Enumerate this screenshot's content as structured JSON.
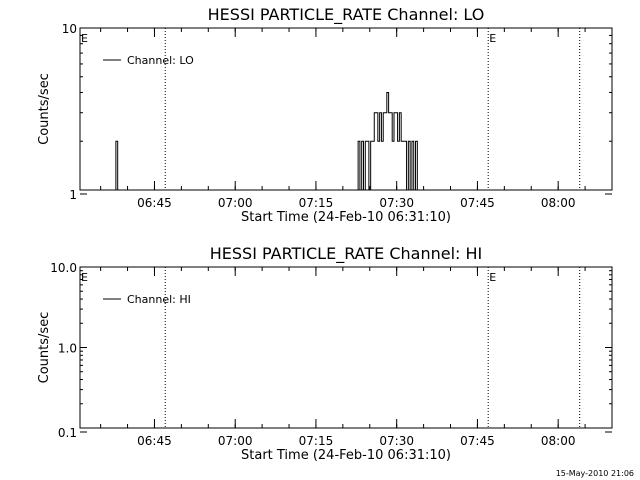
{
  "footer": {
    "timestamp": "15-May-2010 21:06"
  },
  "chart_data": [
    {
      "type": "line",
      "title": "HESSI PARTICLE_RATE Channel: LO",
      "xlabel": "Start Time (24-Feb-10 06:31:10)",
      "ylabel": "Counts/sec",
      "yscale": "log",
      "ylim": [
        1,
        10
      ],
      "yticks": [
        1,
        10
      ],
      "ytick_labels": [
        "1",
        "10"
      ],
      "xlim": [
        "06:31:10",
        "08:10:00"
      ],
      "xticks": [
        "06:45",
        "07:00",
        "07:15",
        "07:30",
        "07:45",
        "08:00"
      ],
      "legend": {
        "position": "top-left",
        "entries": [
          "Channel: LO"
        ]
      },
      "event_markers": [
        {
          "time": "06:31:10",
          "label": "E"
        },
        {
          "time": "06:47:00",
          "label": ""
        },
        {
          "time": "07:47:00",
          "label": "E"
        },
        {
          "time": "08:04:00",
          "label": ""
        }
      ],
      "series": [
        {
          "name": "Channel: LO",
          "x": [
            "06:37:30",
            "06:37:50",
            "06:38:10",
            "06:38:30",
            "07:22:30",
            "07:22:50",
            "07:23:10",
            "07:23:30",
            "07:23:50",
            "07:24:10",
            "07:24:30",
            "07:24:50",
            "07:25:10",
            "07:25:30",
            "07:25:50",
            "07:26:10",
            "07:26:30",
            "07:26:50",
            "07:27:10",
            "07:27:30",
            "07:27:50",
            "07:28:10",
            "07:28:30",
            "07:28:50",
            "07:29:10",
            "07:29:30",
            "07:29:50",
            "07:30:10",
            "07:30:30",
            "07:30:50",
            "07:31:10",
            "07:31:30",
            "07:31:50",
            "07:32:10",
            "07:32:30",
            "07:32:50",
            "07:33:10",
            "07:33:30",
            "07:33:50",
            "07:34:10",
            "07:34:30"
          ],
          "values": [
            1,
            2,
            1,
            0,
            1,
            2,
            1,
            2,
            1,
            2,
            2,
            1,
            2,
            2,
            3,
            3,
            2,
            3,
            2,
            3,
            3,
            4,
            3,
            3,
            2,
            3,
            3,
            2,
            3,
            2,
            2,
            2,
            1,
            2,
            1,
            2,
            1,
            2,
            1,
            0,
            0
          ]
        }
      ]
    },
    {
      "type": "line",
      "title": "HESSI PARTICLE_RATE Channel: HI",
      "xlabel": "Start Time (24-Feb-10 06:31:10)",
      "ylabel": "Counts/sec",
      "yscale": "log",
      "ylim": [
        0.1,
        10
      ],
      "yticks": [
        0.1,
        1,
        10
      ],
      "ytick_labels": [
        "0.1",
        "1.0",
        "10.0"
      ],
      "xlim": [
        "06:31:10",
        "08:10:00"
      ],
      "xticks": [
        "06:45",
        "07:00",
        "07:15",
        "07:30",
        "07:45",
        "08:00"
      ],
      "legend": {
        "position": "top-left",
        "entries": [
          "Channel: HI"
        ]
      },
      "event_markers": [
        {
          "time": "06:31:10",
          "label": "E"
        },
        {
          "time": "06:47:00",
          "label": ""
        },
        {
          "time": "07:47:00",
          "label": "E"
        },
        {
          "time": "08:04:00",
          "label": ""
        }
      ],
      "series": [
        {
          "name": "Channel: HI",
          "x": [],
          "values": []
        }
      ]
    }
  ]
}
